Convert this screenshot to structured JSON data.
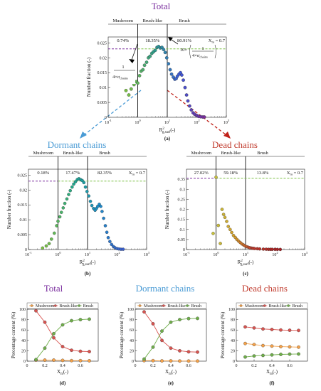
{
  "titles": {
    "total": "Total",
    "dormant": "Dormant chains",
    "dead": "Dead chains",
    "total_bottom": "Total",
    "dormant_bottom": "Dormant chains",
    "dead_bottom": "Dead chains"
  },
  "colors": {
    "total_title": "#7a2e9e",
    "dormant_title": "#4a9bd5",
    "dead_title": "#c0392b",
    "dormant_arrow": "#4a9bd5",
    "dead_arrow": "#c0221a",
    "ref_line_left": "#7a2e9e",
    "ref_line_right": "#7bc043"
  },
  "region_labels": {
    "mushroom": "Mushroom",
    "brushlike": "Brush-like",
    "brush": "Brush"
  },
  "xm_label": "X",
  "xm_sub": "m",
  "xm_value": " = 0.7",
  "annotations": {
    "left_num": "1",
    "left_den": "4×σ",
    "left_den_sub": "chains",
    "right_prefix": "10×",
    "right_num": "1",
    "right_den": "4×σ",
    "right_den_sub": "chains"
  },
  "axis_text": {
    "y_distribution": "Number fraction (-)",
    "x_base": "R",
    "x_sup": "2",
    "x_sub": "g,surf",
    "x_unit": "(-)",
    "y_percentage": "Percentage content (%)",
    "xm_axis_base": "X",
    "xm_axis_sub": "m",
    "xm_axis_unit": "(-)"
  },
  "panel_labels": [
    "(a)",
    "(b)",
    "(c)",
    "(d)",
    "(e)",
    "(f)"
  ],
  "legend_labels": [
    "Mushroom",
    "Brush-like",
    "Brush"
  ],
  "chart_data": [
    {
      "panel": "a",
      "type": "scatter",
      "title": "Total",
      "xscale": "log",
      "xlim": [
        0.1,
        1000
      ],
      "ylim": [
        0,
        0.027
      ],
      "xticks": [
        "10^-1",
        "10^0",
        "10^1",
        "10^2",
        "10^3"
      ],
      "yticks": [
        0,
        0.005,
        0.01,
        0.015,
        0.02,
        0.025
      ],
      "regions": [
        "0.74%",
        "18.35%",
        "80.91%"
      ],
      "boundaries": [
        1,
        10
      ],
      "reference_y": 0.023,
      "x": [
        0.4,
        0.5,
        0.6,
        0.75,
        0.9,
        1.0,
        1.15,
        1.3,
        1.5,
        1.7,
        2.0,
        2.3,
        2.6,
        3.0,
        3.4,
        3.9,
        4.5,
        5.1,
        5.8,
        6.6,
        7.5,
        8.5,
        9.6,
        11,
        12.5,
        14,
        16,
        18,
        20,
        22,
        25,
        28,
        31,
        35,
        40,
        45,
        50,
        57,
        65,
        75,
        85,
        100,
        115,
        135,
        160,
        180
      ],
      "y": [
        0.009,
        0.0075,
        0.0095,
        0.011,
        0.012,
        0.0115,
        0.014,
        0.0155,
        0.016,
        0.0175,
        0.0185,
        0.02,
        0.0205,
        0.0215,
        0.022,
        0.0225,
        0.0235,
        0.0238,
        0.0233,
        0.0235,
        0.0228,
        0.0218,
        0.02,
        0.018,
        0.016,
        0.0145,
        0.0135,
        0.0128,
        0.013,
        0.0138,
        0.0145,
        0.015,
        0.0142,
        0.0125,
        0.01,
        0.0075,
        0.0055,
        0.0038,
        0.0025,
        0.0015,
        0.001,
        0.0006,
        0.0003,
        0.0002,
        0.0001,
        0.0001
      ],
      "color_gradient": [
        "#7bc043",
        "#2a9d8f",
        "#3b5bdb",
        "#7a2e9e"
      ]
    },
    {
      "panel": "b",
      "type": "scatter",
      "title": "Dormant chains",
      "xscale": "log",
      "xlim": [
        0.1,
        1000
      ],
      "ylim": [
        0,
        0.027
      ],
      "xticks": [
        "10^-1",
        "10^0",
        "10^1",
        "10^2",
        "10^3"
      ],
      "yticks": [
        0,
        0.005,
        0.01,
        0.015,
        0.02,
        0.025
      ],
      "regions": [
        "0.18%",
        "17.47%",
        "82.35%"
      ],
      "boundaries": [
        1,
        10
      ],
      "reference_y": 0.023,
      "x": [
        0.3,
        0.4,
        0.5,
        0.6,
        0.75,
        0.9,
        1.0,
        1.15,
        1.3,
        1.5,
        1.7,
        2.0,
        2.3,
        2.6,
        3.0,
        3.4,
        3.9,
        4.5,
        5.1,
        5.8,
        6.6,
        7.5,
        8.5,
        9.6,
        11,
        12.5,
        14,
        16,
        18,
        20,
        22,
        25,
        28,
        31,
        35,
        40,
        45,
        50,
        57,
        65,
        75,
        85,
        100,
        115,
        135,
        160
      ],
      "y": [
        0.0005,
        0.0012,
        0.002,
        0.0035,
        0.0055,
        0.008,
        0.0095,
        0.011,
        0.0125,
        0.014,
        0.0155,
        0.017,
        0.0185,
        0.0198,
        0.021,
        0.022,
        0.0228,
        0.0235,
        0.0238,
        0.0235,
        0.0232,
        0.0225,
        0.021,
        0.0195,
        0.018,
        0.0162,
        0.0148,
        0.0138,
        0.0132,
        0.0138,
        0.0145,
        0.0152,
        0.0145,
        0.0128,
        0.0105,
        0.008,
        0.0058,
        0.004,
        0.0027,
        0.0017,
        0.001,
        0.0006,
        0.0003,
        0.0002,
        0.0001,
        0.0001
      ],
      "color_gradient": [
        "#7bc043",
        "#1fa98d",
        "#1b8fc9",
        "#3a5fcd"
      ]
    },
    {
      "panel": "c",
      "type": "scatter",
      "title": "Dead chains",
      "xscale": "log",
      "xlim": [
        0.1,
        1000
      ],
      "ylim": [
        0,
        0.4
      ],
      "xticks": [
        "10^-1",
        "10^0",
        "10^1",
        "10^2",
        "10^3"
      ],
      "yticks": [
        0,
        0.05,
        0.1,
        0.15,
        0.2,
        0.25,
        0.3,
        0.35
      ],
      "regions": [
        "27.02%",
        "59.18%",
        "13.8%"
      ],
      "boundaries": [
        1,
        10
      ],
      "reference_y": 0.355,
      "x": [
        0.8,
        1.0,
        1.2,
        1.4,
        1.6,
        1.8,
        2.0,
        2.3,
        2.6,
        3.0,
        3.4,
        3.9,
        4.5,
        5.1,
        5.8,
        6.6,
        7.5,
        8.5,
        9.6,
        11,
        12.5,
        14,
        16,
        18,
        20,
        25,
        30,
        40,
        50,
        60,
        70,
        80,
        100,
        120,
        150
      ],
      "y": [
        0.08,
        0.36,
        0.12,
        0.03,
        0.2,
        0.175,
        0.16,
        0.14,
        0.115,
        0.1,
        0.085,
        0.07,
        0.06,
        0.05,
        0.042,
        0.035,
        0.028,
        0.023,
        0.018,
        0.014,
        0.011,
        0.009,
        0.007,
        0.006,
        0.005,
        0.004,
        0.003,
        0.002,
        0.0015,
        0.001,
        0.001,
        0.001,
        0.0008,
        0.0006,
        0.0005
      ],
      "color_gradient": [
        "#c8c23a",
        "#d4a02a",
        "#c0392b",
        "#a51e22"
      ]
    },
    {
      "panel": "d",
      "type": "line",
      "title": "Total",
      "xlim": [
        0,
        0.8
      ],
      "ylim": [
        0,
        100
      ],
      "xticks": [
        0,
        0.2,
        0.4,
        0.6
      ],
      "yticks": [
        0,
        20,
        40,
        60,
        80,
        100
      ],
      "x": [
        0.1,
        0.2,
        0.3,
        0.4,
        0.5,
        0.6,
        0.7
      ],
      "series": [
        {
          "name": "Mushroom",
          "values": [
            2,
            2,
            2,
            1.5,
            1,
            1,
            0.7
          ],
          "color": "#f5a24a"
        },
        {
          "name": "Brush-like",
          "values": [
            97,
            75,
            45,
            28,
            21,
            19,
            18.35
          ],
          "color": "#d9534f"
        },
        {
          "name": "Brush",
          "values": [
            3,
            25,
            53,
            70,
            78,
            80,
            80.91
          ],
          "color": "#6fae4a"
        }
      ]
    },
    {
      "panel": "e",
      "type": "line",
      "title": "Dormant chains",
      "xlim": [
        0,
        0.8
      ],
      "ylim": [
        0,
        100
      ],
      "xticks": [
        0,
        0.2,
        0.4,
        0.6
      ],
      "yticks": [
        0,
        20,
        40,
        60,
        80,
        100
      ],
      "x": [
        0.1,
        0.2,
        0.3,
        0.4,
        0.5,
        0.6,
        0.7
      ],
      "series": [
        {
          "name": "Mushroom",
          "values": [
            1,
            1,
            0.5,
            0.5,
            0.3,
            0.2,
            0.18
          ],
          "color": "#f5a24a"
        },
        {
          "name": "Brush-like",
          "values": [
            95,
            72,
            40,
            25,
            20,
            18,
            17.47
          ],
          "color": "#d9534f"
        },
        {
          "name": "Brush",
          "values": [
            4,
            27,
            58,
            75,
            80,
            82,
            82.35
          ],
          "color": "#6fae4a"
        }
      ]
    },
    {
      "panel": "f",
      "type": "line",
      "title": "Dead chains",
      "xlim": [
        0,
        0.8
      ],
      "ylim": [
        0,
        100
      ],
      "xticks": [
        0,
        0.2,
        0.4,
        0.6
      ],
      "yticks": [
        0,
        20,
        40,
        60,
        80,
        100
      ],
      "x": [
        0.1,
        0.2,
        0.3,
        0.4,
        0.5,
        0.6,
        0.7
      ],
      "series": [
        {
          "name": "Mushroom",
          "values": [
            34,
            32,
            30,
            29,
            28,
            27.5,
            27.02
          ],
          "color": "#f5a24a"
        },
        {
          "name": "Brush-like",
          "values": [
            66,
            64,
            62,
            61,
            60,
            59.5,
            59.18
          ],
          "color": "#d9534f"
        },
        {
          "name": "Brush",
          "values": [
            8,
            10,
            11,
            12,
            13,
            13.5,
            13.8
          ],
          "color": "#6fae4a"
        }
      ]
    }
  ]
}
